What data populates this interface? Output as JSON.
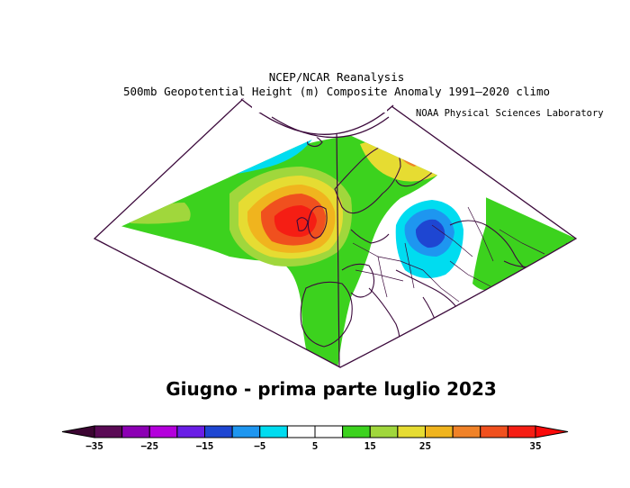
{
  "header": {
    "line1": "NCEP/NCAR Reanalysis",
    "line2": "500mb Geopotential Height (m) Composite Anomaly 1991–2020 climo",
    "credit": "NOAA Physical Sciences Laboratory"
  },
  "caption": "Giugno - prima parte luglio 2023",
  "colorbar": {
    "labels": [
      "−35",
      "−25",
      "−15",
      "−5",
      "5",
      "15",
      "25",
      "35"
    ],
    "colors": [
      "#5a0a55",
      "#8c00b4",
      "#b400dc",
      "#6a1ee6",
      "#1e46d2",
      "#1e96f0",
      "#00dcf0",
      "#ffffff",
      "#ffffff",
      "#3cd21e",
      "#a0d73c",
      "#e6dc32",
      "#f0b41e",
      "#f08228",
      "#f0501e",
      "#f51e14"
    ],
    "end_colors": {
      "low": "#3c0532",
      "high": "#fa0a0a"
    }
  },
  "legend": {
    "positive_color": "#f01e1e",
    "negative_color": "#1e46d2"
  }
}
